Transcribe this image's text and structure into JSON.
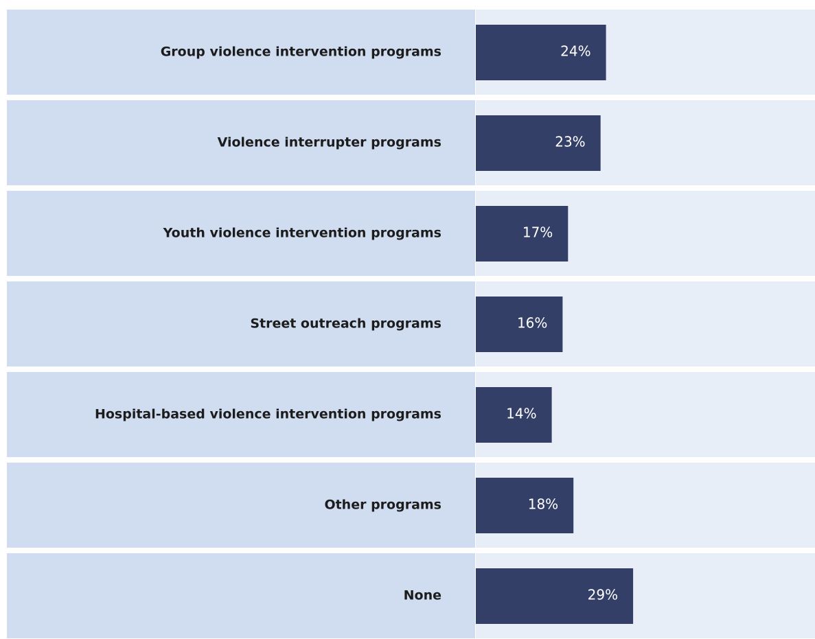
{
  "chart_data": {
    "type": "bar",
    "orientation": "horizontal",
    "categories": [
      "Group violence intervention programs",
      "Violence interrupter programs",
      "Youth violence intervention programs",
      "Street outreach programs",
      "Hospital-based violence intervention programs",
      "Other programs",
      "None"
    ],
    "values": [
      24,
      23,
      17,
      16,
      14,
      18,
      29
    ],
    "value_labels": [
      "24%",
      "23%",
      "17%",
      "16%",
      "14%",
      "18%",
      "29%"
    ],
    "color": "#343f68"
  }
}
